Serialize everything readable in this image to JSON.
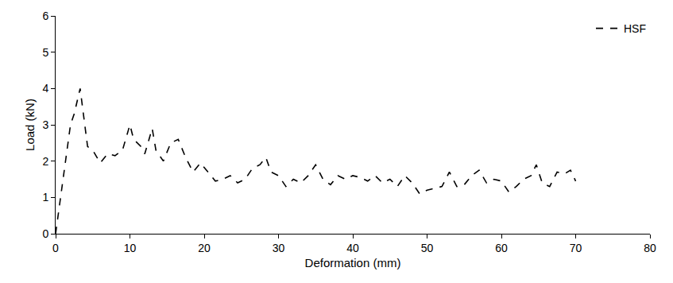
{
  "chart_data": {
    "type": "line",
    "x_label": "Deformation (mm)",
    "y_label": "Load (kN)",
    "xlim": [
      0,
      80
    ],
    "ylim": [
      0,
      6
    ],
    "xticks": [
      0,
      10,
      20,
      30,
      40,
      50,
      60,
      70,
      80
    ],
    "yticks": [
      0,
      1,
      2,
      3,
      4,
      5,
      6
    ],
    "grid": false,
    "legend": "top right",
    "series": [
      {
        "name": "HSF",
        "color": "#000000",
        "line_style": "dashed",
        "x": [
          0,
          1,
          2,
          2.5,
          3.3,
          3.8,
          4.3,
          5,
          6,
          7,
          8,
          9,
          10,
          10.5,
          11.5,
          12,
          13,
          13.5,
          14.5,
          15.5,
          16.5,
          17.5,
          18.5,
          19.5,
          20.5,
          21.5,
          22.5,
          23.5,
          24.5,
          25.5,
          26.5,
          27.5,
          28.3,
          29,
          30,
          31,
          32,
          33,
          34,
          35,
          36,
          37,
          38,
          39,
          40,
          41,
          42,
          43,
          44,
          45,
          46,
          47,
          48,
          49,
          50,
          51,
          52,
          53,
          54,
          55,
          56,
          57,
          58,
          59,
          60,
          61,
          62,
          63,
          64,
          64.7,
          65.5,
          66.5,
          67.5,
          68.5,
          69.3,
          70
        ],
        "values": [
          0,
          1.5,
          3.0,
          3.3,
          4.0,
          3.2,
          2.4,
          2.3,
          1.95,
          2.2,
          2.15,
          2.3,
          3.0,
          2.6,
          2.4,
          2.2,
          2.9,
          2.3,
          2.0,
          2.5,
          2.6,
          2.1,
          1.7,
          1.95,
          1.7,
          1.45,
          1.5,
          1.6,
          1.4,
          1.5,
          1.8,
          1.9,
          2.1,
          1.7,
          1.6,
          1.3,
          1.5,
          1.4,
          1.6,
          1.9,
          1.5,
          1.35,
          1.6,
          1.5,
          1.6,
          1.55,
          1.45,
          1.6,
          1.4,
          1.5,
          1.3,
          1.6,
          1.4,
          1.1,
          1.2,
          1.25,
          1.3,
          1.7,
          1.3,
          1.35,
          1.6,
          1.75,
          1.4,
          1.5,
          1.45,
          1.15,
          1.3,
          1.5,
          1.6,
          1.9,
          1.4,
          1.3,
          1.7,
          1.65,
          1.75,
          1.45
        ]
      }
    ]
  }
}
